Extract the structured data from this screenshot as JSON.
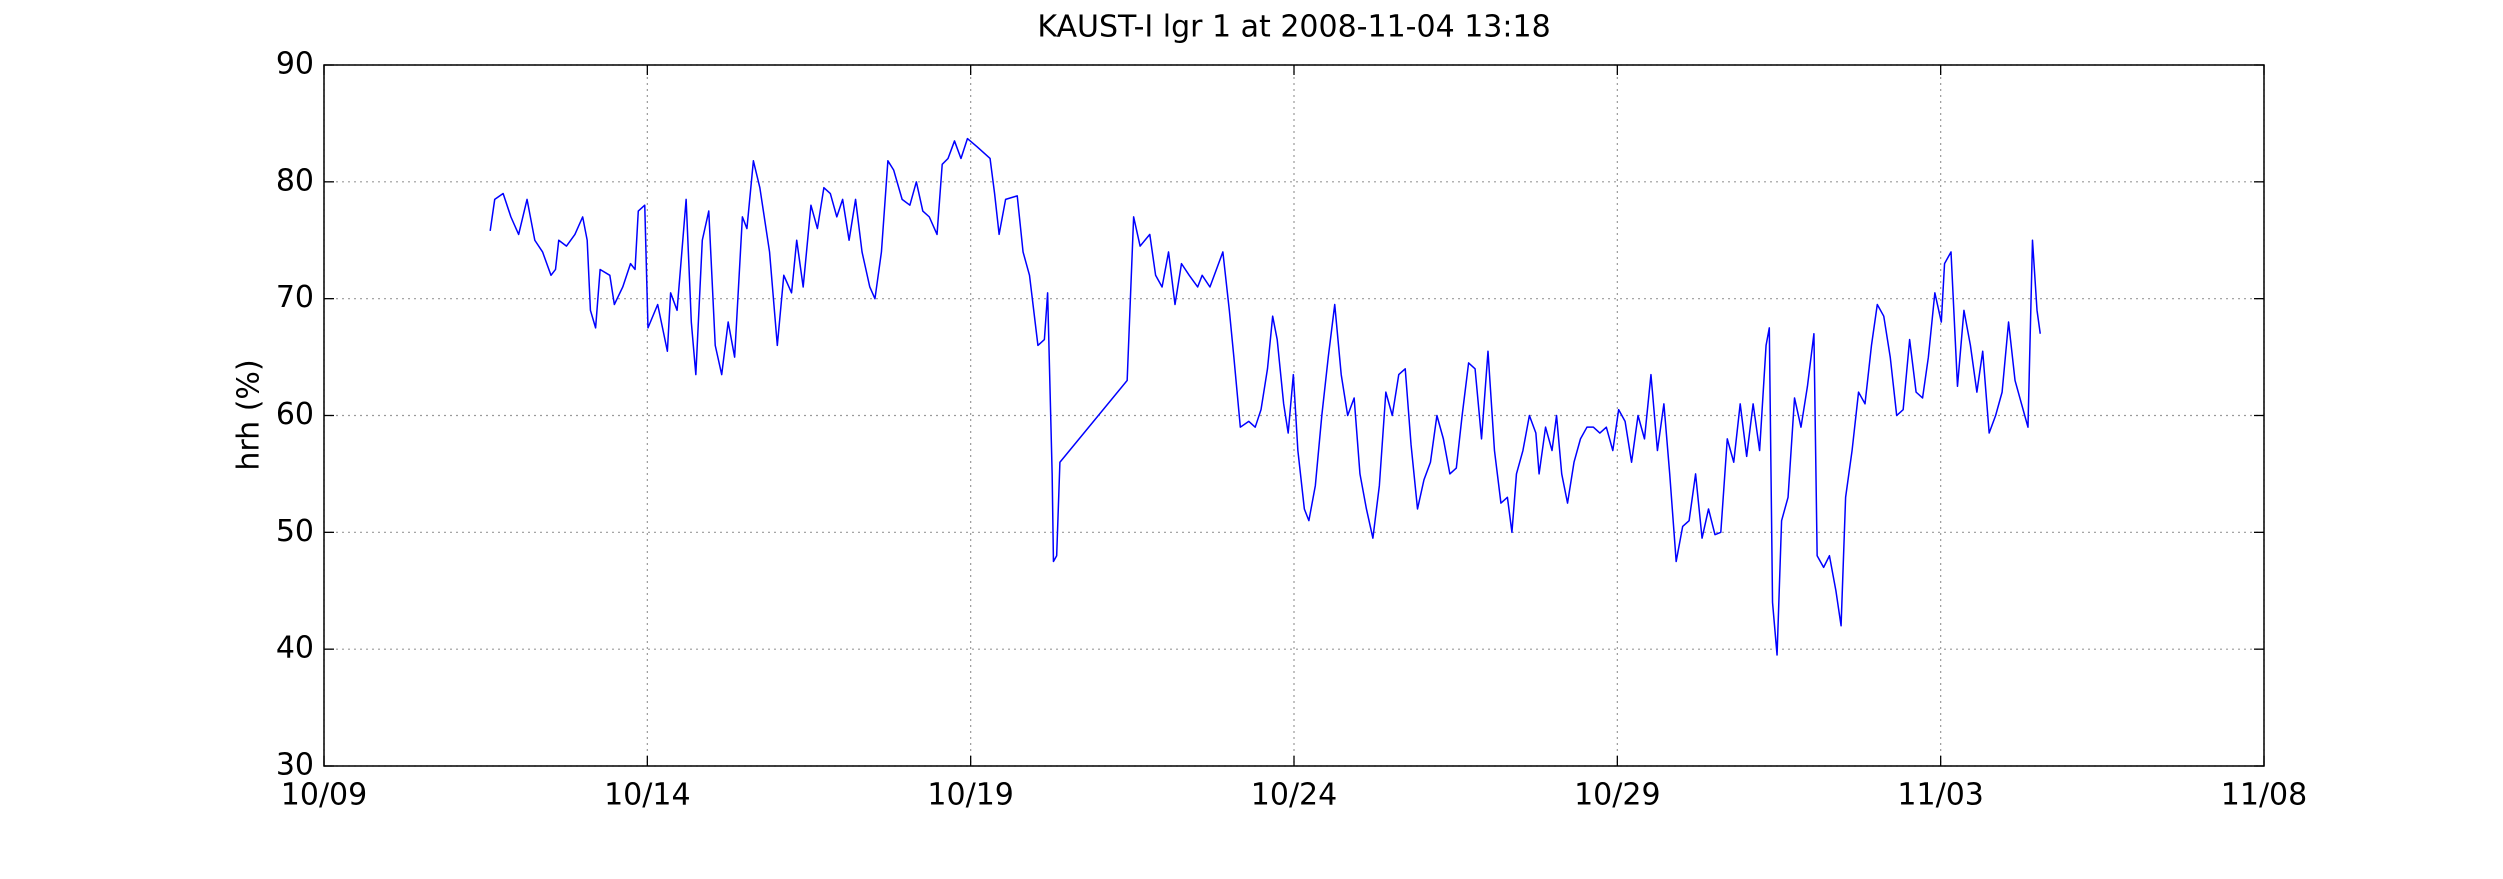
{
  "chart_data": {
    "type": "line",
    "title": "KAUST-I lgr 1 at 2008-11-04 13:18",
    "y_label": "hrh (%)",
    "xlim": [
      9,
      39
    ],
    "xticks": [
      {
        "value": 9,
        "label": "10/09"
      },
      {
        "value": 14,
        "label": "10/14"
      },
      {
        "value": 19,
        "label": "10/19"
      },
      {
        "value": 24,
        "label": "10/24"
      },
      {
        "value": 29,
        "label": "10/29"
      },
      {
        "value": 34,
        "label": "11/03"
      },
      {
        "value": 39,
        "label": "11/08"
      }
    ],
    "ylim": [
      30,
      90
    ],
    "yticks": [
      30,
      40,
      50,
      60,
      70,
      80,
      90
    ],
    "grid": true,
    "series": [
      {
        "color": "#0000ff",
        "x": [
          11.57,
          11.64,
          11.77,
          11.89,
          12.01,
          12.14,
          12.26,
          12.38,
          12.51,
          12.58,
          12.63,
          12.75,
          12.88,
          13.0,
          13.07,
          13.12,
          13.2,
          13.27,
          13.42,
          13.49,
          13.62,
          13.74,
          13.81,
          13.86,
          13.96,
          14.01,
          14.16,
          14.31,
          14.36,
          14.46,
          14.6,
          14.68,
          14.75,
          14.85,
          14.95,
          15.05,
          15.15,
          15.25,
          15.35,
          15.47,
          15.54,
          15.64,
          15.74,
          15.89,
          16.01,
          16.11,
          16.23,
          16.31,
          16.41,
          16.53,
          16.63,
          16.73,
          16.83,
          16.93,
          17.02,
          17.12,
          17.22,
          17.32,
          17.44,
          17.52,
          17.62,
          17.72,
          17.81,
          17.94,
          18.06,
          18.16,
          18.26,
          18.36,
          18.48,
          18.56,
          18.65,
          18.75,
          18.85,
          18.95,
          19.1,
          19.3,
          19.37,
          19.44,
          19.54,
          19.72,
          19.81,
          19.91,
          20.04,
          20.14,
          20.19,
          20.26,
          20.28,
          20.33,
          20.38,
          21.42,
          21.52,
          21.62,
          21.77,
          21.86,
          21.96,
          22.06,
          22.16,
          22.26,
          22.38,
          22.51,
          22.58,
          22.7,
          22.8,
          22.9,
          23.0,
          23.07,
          23.17,
          23.3,
          23.4,
          23.49,
          23.59,
          23.67,
          23.74,
          23.84,
          23.91,
          23.99,
          24.06,
          24.16,
          24.23,
          24.33,
          24.43,
          24.53,
          24.63,
          24.73,
          24.83,
          24.93,
          25.02,
          25.12,
          25.22,
          25.32,
          25.42,
          25.52,
          25.62,
          25.72,
          25.81,
          25.91,
          26.01,
          26.11,
          26.21,
          26.31,
          26.41,
          26.51,
          26.6,
          26.7,
          26.8,
          26.9,
          27.0,
          27.1,
          27.2,
          27.3,
          27.37,
          27.44,
          27.54,
          27.64,
          27.74,
          27.79,
          27.89,
          27.99,
          28.06,
          28.14,
          28.23,
          28.33,
          28.43,
          28.53,
          28.63,
          28.73,
          28.83,
          28.93,
          29.02,
          29.12,
          29.22,
          29.32,
          29.42,
          29.52,
          29.62,
          29.72,
          29.81,
          29.91,
          30.01,
          30.11,
          30.21,
          30.31,
          30.41,
          30.51,
          30.6,
          30.7,
          30.8,
          30.9,
          31.0,
          31.1,
          31.2,
          31.3,
          31.35,
          31.4,
          31.47,
          31.54,
          31.64,
          31.74,
          31.84,
          31.94,
          32.04,
          32.09,
          32.19,
          32.28,
          32.38,
          32.46,
          32.53,
          32.63,
          32.73,
          32.83,
          32.93,
          33.02,
          33.12,
          33.22,
          33.32,
          33.42,
          33.52,
          33.62,
          33.72,
          33.81,
          33.91,
          34.01,
          34.06,
          34.16,
          34.26,
          34.36,
          34.46,
          34.56,
          34.65,
          34.75,
          34.85,
          34.95,
          35.05,
          35.15,
          35.25,
          35.35,
          35.42,
          35.49,
          35.54
        ],
        "values": [
          75.8,
          78.5,
          79,
          77,
          75.5,
          78.5,
          75,
          74,
          72,
          72.5,
          75,
          74.5,
          75.5,
          77,
          75,
          69,
          67.5,
          72.5,
          72,
          69.5,
          71,
          73,
          72.5,
          77.5,
          78,
          67.5,
          69.5,
          65.5,
          70.5,
          69,
          78.5,
          68,
          63.5,
          75,
          77.5,
          66,
          63.5,
          68,
          65,
          77,
          76,
          81.8,
          79.5,
          74,
          66,
          72,
          70.5,
          75,
          71,
          78,
          76,
          79.5,
          79,
          77,
          78.5,
          75,
          78.5,
          74,
          71,
          70,
          74,
          81.8,
          81,
          78.5,
          78,
          80,
          77.5,
          77,
          75.5,
          81.5,
          82,
          83.5,
          82,
          83.7,
          83,
          82,
          79,
          75.5,
          78.5,
          78.8,
          74,
          72,
          66,
          66.5,
          70.5,
          55,
          47.5,
          48,
          56,
          63,
          77,
          74.5,
          75.5,
          72,
          71,
          74,
          69.5,
          73,
          72,
          71,
          72,
          71,
          72.5,
          74,
          69,
          65,
          59,
          59.5,
          59,
          60.5,
          64,
          68.5,
          66.5,
          61,
          58.5,
          63.5,
          57,
          52,
          51,
          54,
          60,
          65,
          69.5,
          63.5,
          60,
          61.5,
          55,
          52,
          49.5,
          54,
          62,
          60,
          63.5,
          64,
          57.5,
          52,
          54.5,
          56,
          60,
          58,
          55,
          55.5,
          60,
          64.5,
          64,
          58,
          65.5,
          57,
          52.5,
          53,
          50,
          55,
          57,
          60,
          58.5,
          55,
          59,
          57,
          60,
          55,
          52.5,
          56,
          58,
          59,
          59,
          58.5,
          59,
          57,
          60.5,
          59.5,
          56,
          60,
          58,
          63.5,
          57,
          61,
          55,
          47.5,
          50.5,
          51,
          55,
          49.5,
          52,
          49.8,
          50,
          58,
          56,
          61,
          56.5,
          61,
          57,
          66,
          67.5,
          44,
          39.5,
          51,
          53,
          61.5,
          59,
          62.5,
          67,
          48,
          47,
          48,
          45,
          42,
          53,
          57,
          62,
          61,
          66,
          69.5,
          68.5,
          65,
          60,
          60.5,
          66.5,
          62,
          61.5,
          65,
          70.5,
          68,
          73,
          74,
          62.5,
          69,
          66,
          62,
          65.5,
          58.5,
          60,
          62,
          68,
          63,
          61,
          59,
          75,
          69,
          67
        ]
      }
    ]
  }
}
